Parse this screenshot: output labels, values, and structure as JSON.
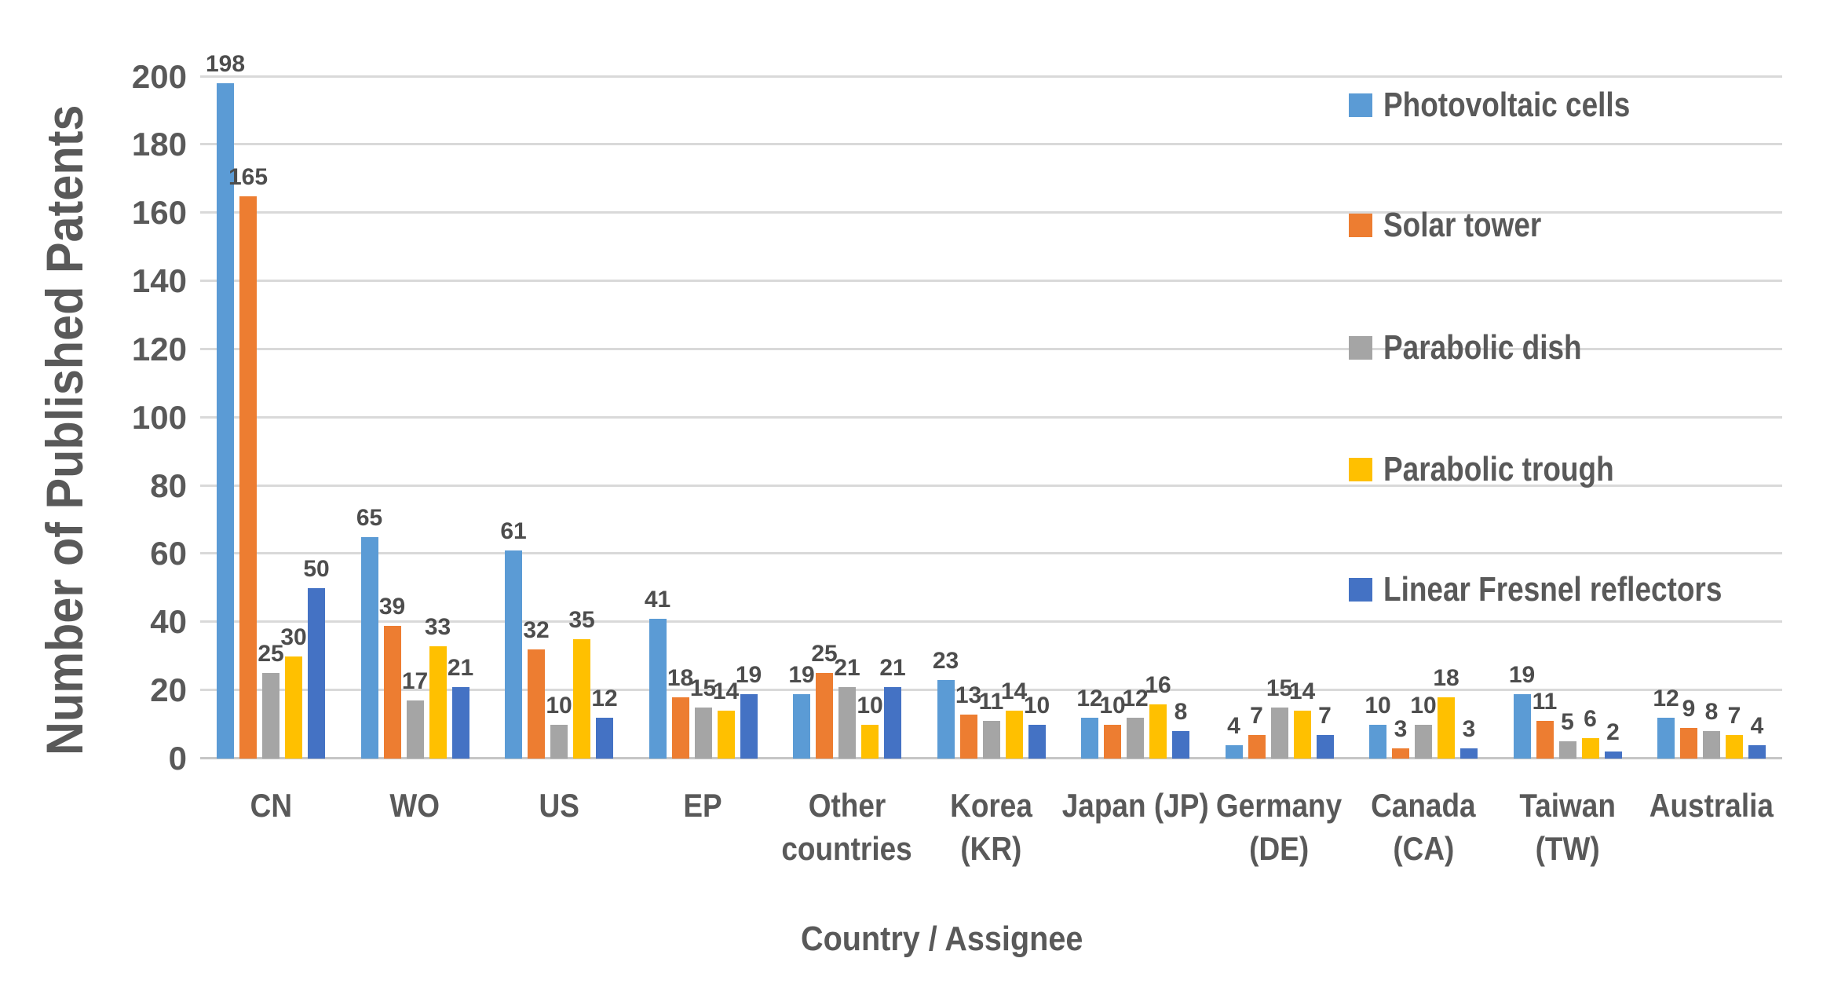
{
  "chart_data": {
    "type": "bar",
    "title": "",
    "xlabel": "Country / Assignee",
    "ylabel": "Number of Published Patents",
    "ylim": [
      0,
      200
    ],
    "ytick_step": 20,
    "yticks": [
      0,
      20,
      40,
      60,
      80,
      100,
      120,
      140,
      160,
      180,
      200
    ],
    "grid": "horizontal",
    "legend_position": "right-overlay",
    "categories": [
      "CN",
      "WO",
      "US",
      "EP",
      "Other countries",
      "Korea (KR)",
      "Japan (JP)",
      "Germany (DE)",
      "Canada (CA)",
      "Taiwan (TW)",
      "Australia"
    ],
    "category_lines": [
      [
        "CN"
      ],
      [
        "WO"
      ],
      [
        "US"
      ],
      [
        "EP"
      ],
      [
        "Other",
        "countries"
      ],
      [
        "Korea",
        "(KR)"
      ],
      [
        "Japan (JP)"
      ],
      [
        "Germany",
        "(DE)"
      ],
      [
        "Canada",
        "(CA)"
      ],
      [
        "Taiwan",
        "(TW)"
      ],
      [
        "Australia"
      ]
    ],
    "series": [
      {
        "name": "Photovoltaic cells",
        "color": "#5B9BD5",
        "values": [
          198,
          65,
          61,
          41,
          19,
          23,
          12,
          4,
          10,
          19,
          12
        ]
      },
      {
        "name": "Solar tower",
        "color": "#ED7D31",
        "values": [
          165,
          39,
          32,
          18,
          25,
          13,
          10,
          7,
          3,
          11,
          9
        ]
      },
      {
        "name": "Parabolic dish",
        "color": "#A5A5A5",
        "values": [
          25,
          17,
          10,
          15,
          21,
          11,
          12,
          15,
          10,
          5,
          8
        ]
      },
      {
        "name": "Parabolic trough",
        "color": "#FFC000",
        "values": [
          30,
          33,
          35,
          14,
          10,
          14,
          16,
          14,
          18,
          6,
          7
        ]
      },
      {
        "name": "Linear Fresnel reflectors",
        "color": "#4472C4",
        "values": [
          50,
          21,
          12,
          19,
          21,
          10,
          8,
          7,
          2,
          2,
          4
        ]
      }
    ],
    "style": {
      "text_color": "#595959",
      "data_label_color": "#4d4d4d",
      "grid_color": "#D9D9D9",
      "axis_line_color": "#C6C6C6",
      "background": "#FFFFFF"
    }
  }
}
